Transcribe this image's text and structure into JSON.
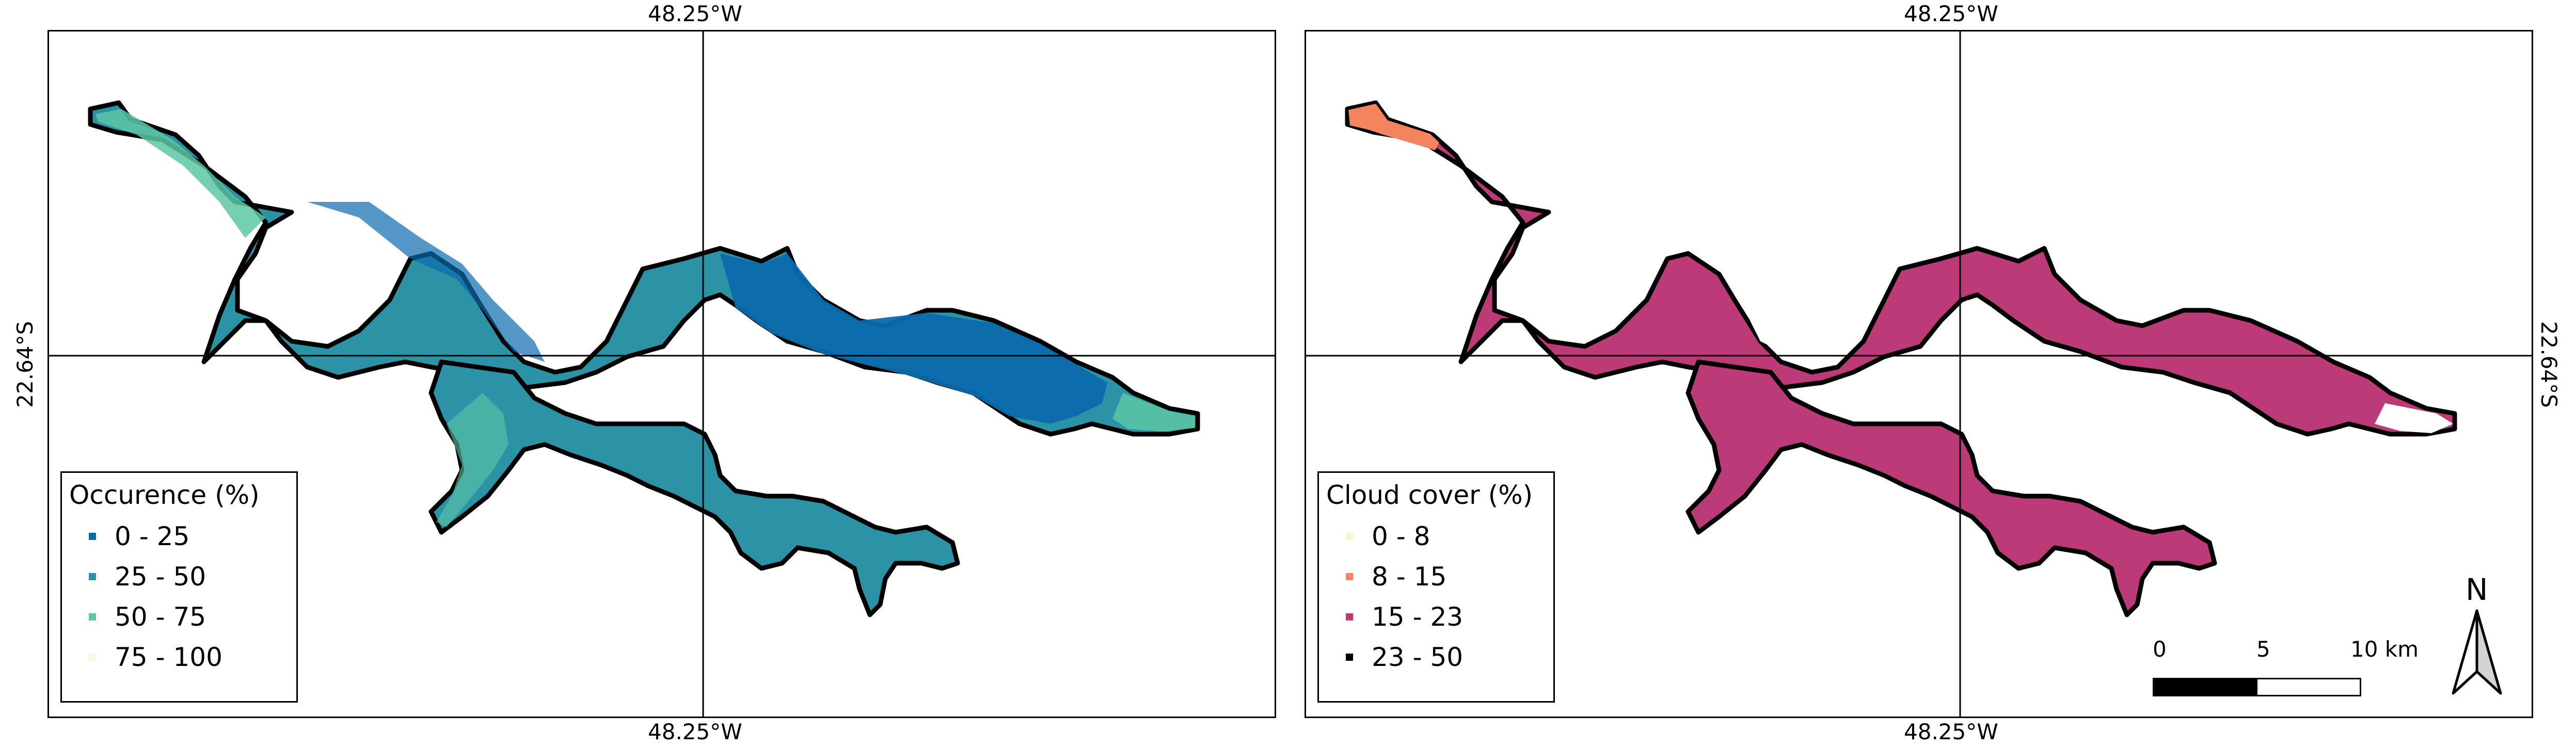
{
  "colors": {
    "occ_0_25": "#0c6aac",
    "occ_25_50": "#2b93a5",
    "occ_50_75": "#5dc7a6",
    "occ_75_100": "#f4f9e6",
    "cc_0_8": "#fbf7c2",
    "cc_8_15": "#f3845d",
    "cc_15_23": "#bd3a79",
    "cc_23_50": "#000000",
    "outline": "#000000"
  },
  "map_left": {
    "lon_label_top": "48.25°W",
    "lon_label_bottom": "48.25°W",
    "lat_label_left": "22.64°S",
    "legend": {
      "title": "Occurence (%)",
      "items": [
        {
          "label": "0 - 25",
          "color_key": "occ_0_25"
        },
        {
          "label": "25 - 50",
          "color_key": "occ_25_50"
        },
        {
          "label": "50 - 75",
          "color_key": "occ_50_75"
        },
        {
          "label": "75 - 100",
          "color_key": "occ_75_100"
        }
      ]
    }
  },
  "map_right": {
    "lon_label_top": "48.25°W",
    "lon_label_bottom": "48.25°W",
    "lat_label_right": "22.64°S",
    "legend": {
      "title": "Cloud cover (%)",
      "items": [
        {
          "label": "0 - 8",
          "color_key": "cc_0_8"
        },
        {
          "label": "8 - 15",
          "color_key": "cc_8_15"
        },
        {
          "label": "15 - 23",
          "color_key": "cc_15_23"
        },
        {
          "label": "23 - 50",
          "color_key": "cc_23_50"
        }
      ]
    },
    "scale_bar": {
      "tick_0": "0",
      "tick_5": "5",
      "tick_10": "10 km"
    },
    "north_arrow": {
      "label": "N",
      "icon": "north-arrow-icon"
    }
  }
}
